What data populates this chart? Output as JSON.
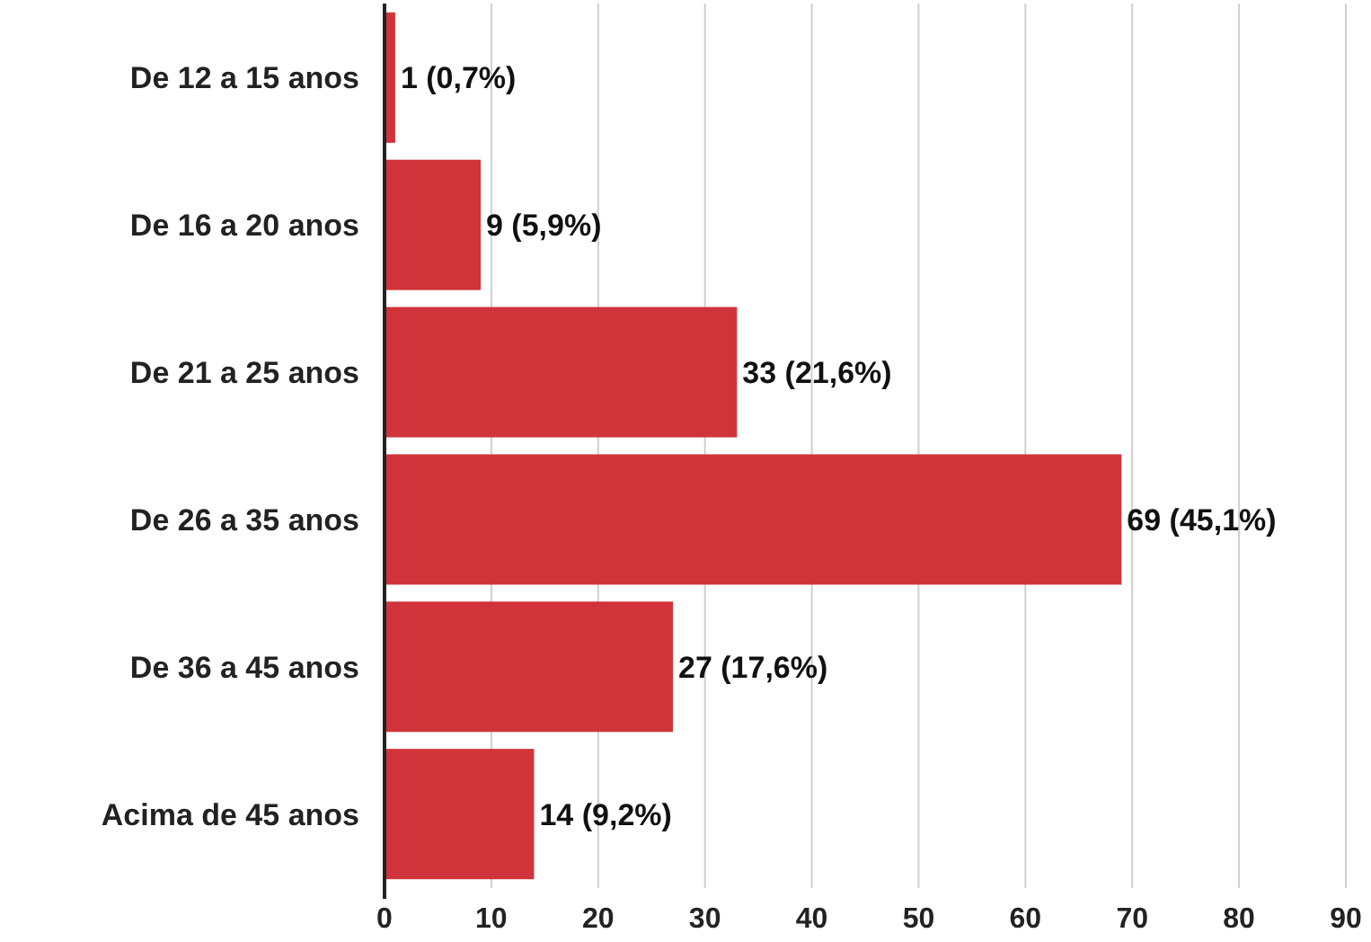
{
  "chart_data": {
    "type": "bar",
    "orientation": "horizontal",
    "categories": [
      "De 12 a 15 anos",
      "De 16 a 20 anos",
      "De 21 a 25 anos",
      "De 26 a 35 anos",
      "De 36 a 45 anos",
      "Acima de 45 anos"
    ],
    "values": [
      1,
      9,
      33,
      69,
      27,
      14
    ],
    "value_labels": [
      "1 (0,7%)",
      "9 (5,9%)",
      "33 (21,6%)",
      "69 (45,1%)",
      "27 (17,6%)",
      "14 (9,2%)"
    ],
    "color": "#d0343a",
    "xlim": [
      0,
      90
    ],
    "xticks": [
      0,
      10,
      20,
      30,
      40,
      50,
      60,
      70,
      80,
      90
    ],
    "grid": "x"
  }
}
